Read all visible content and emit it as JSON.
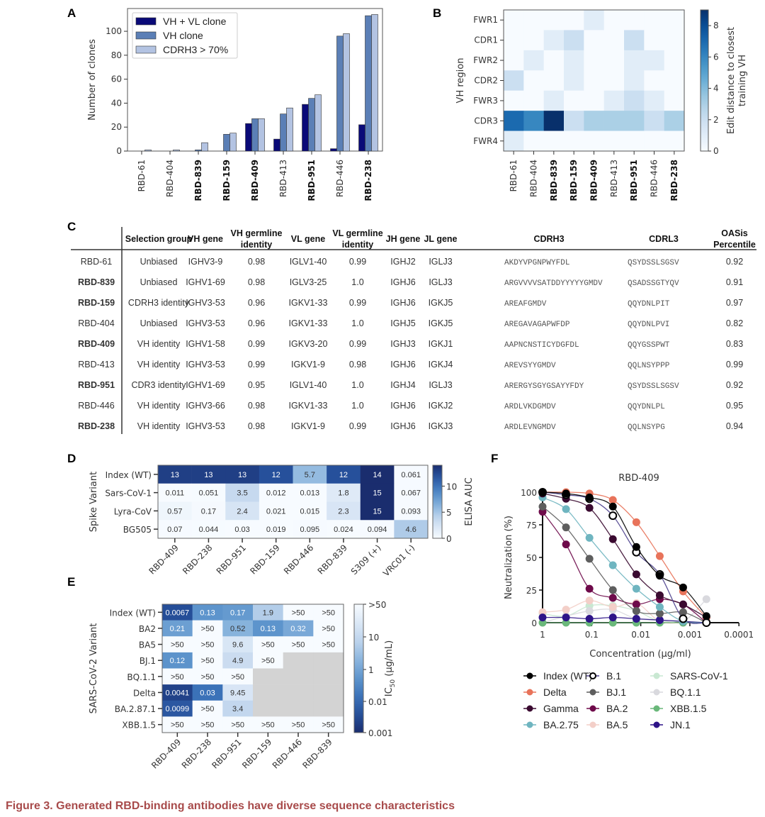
{
  "figure": {
    "caption": "Figure 3.  Generated RBD-binding antibodies have diverse sequence characteristics",
    "panel_letters": [
      "A",
      "B",
      "C",
      "D",
      "E",
      "F"
    ]
  },
  "chart_data": [
    {
      "panel": "A",
      "type": "bar",
      "title": "",
      "xlabel": "",
      "ylabel": "Number of clones",
      "ylim": [
        0,
        119
      ],
      "yticks": [
        0,
        20,
        40,
        60,
        80,
        100
      ],
      "categories": [
        "RBD-61",
        "RBD-404",
        "RBD-839",
        "RBD-159",
        "RBD-409",
        "RBD-413",
        "RBD-951",
        "RBD-446",
        "RBD-238"
      ],
      "bold_categories": [
        "RBD-839",
        "RBD-159",
        "RBD-409",
        "RBD-951",
        "RBD-238"
      ],
      "legend_position": "top-left",
      "series": [
        {
          "name": "VH + VL clone",
          "color": "#0a0a78",
          "values": [
            0,
            0,
            0,
            0,
            23,
            10,
            39,
            2,
            22
          ]
        },
        {
          "name": "VH clone",
          "color": "#5b7fb6",
          "values": [
            0,
            0,
            1,
            14,
            27,
            31,
            44,
            96,
            113
          ]
        },
        {
          "name": "CDRH3 > 70%",
          "color": "#b3c3e2",
          "values": [
            1,
            1,
            7,
            15,
            27,
            36,
            47,
            98,
            114
          ]
        }
      ]
    },
    {
      "panel": "B",
      "type": "heatmap",
      "ylabel": "VH region",
      "colorbar_label": "Edit distance to closest training VH",
      "colorbar_range": [
        0,
        9
      ],
      "colorbar_ticks": [
        0,
        2,
        4,
        6,
        8
      ],
      "x": [
        "RBD-61",
        "RBD-404",
        "RBD-839",
        "RBD-159",
        "RBD-409",
        "RBD-413",
        "RBD-951",
        "RBD-446",
        "RBD-238"
      ],
      "bold_x": [
        "RBD-839",
        "RBD-159",
        "RBD-409",
        "RBD-951",
        "RBD-238"
      ],
      "y": [
        "FWR1",
        "CDR1",
        "FWR2",
        "CDR2",
        "FWR3",
        "CDR3",
        "FWR4"
      ],
      "values": [
        [
          0,
          0,
          0,
          0,
          1,
          0,
          0,
          0,
          0
        ],
        [
          0,
          0,
          1,
          2,
          0,
          0,
          2,
          0,
          0
        ],
        [
          0,
          1,
          0,
          1,
          0,
          0,
          1,
          1,
          0
        ],
        [
          2,
          0,
          0,
          1,
          0,
          0,
          1,
          0,
          0
        ],
        [
          0,
          0,
          1,
          0,
          0,
          1,
          2,
          1,
          0
        ],
        [
          7,
          6,
          9,
          2,
          3,
          3,
          3,
          2,
          3
        ],
        [
          1,
          0,
          0,
          0,
          0,
          0,
          0,
          0,
          0
        ]
      ]
    },
    {
      "panel": "D",
      "type": "heatmap",
      "ylabel": "Spike Variant",
      "colorbar_label": "ELISA AUC",
      "colorbar_range": [
        0,
        14
      ],
      "colorbar_ticks": [
        0,
        5,
        10
      ],
      "x": [
        "RBD-409",
        "RBD-238",
        "RBD-951",
        "RBD-159",
        "RBD-446",
        "RBD-839",
        "S309 (+)",
        "VRC01 (-)"
      ],
      "y": [
        "Index (WT)",
        "Sars-CoV-1",
        "Lyra-CoV",
        "BG505"
      ],
      "labels": [
        [
          "13",
          "13",
          "13",
          "12",
          "5.7",
          "12",
          "14",
          "0.061"
        ],
        [
          "0.011",
          "0.051",
          "3.5",
          "0.012",
          "0.013",
          "1.8",
          "15",
          "0.067"
        ],
        [
          "0.57",
          "0.17",
          "2.4",
          "0.021",
          "0.015",
          "2.3",
          "15",
          "0.093"
        ],
        [
          "0.07",
          "0.044",
          "0.03",
          "0.019",
          "0.095",
          "0.024",
          "0.094",
          "4.6"
        ]
      ],
      "values": [
        [
          13,
          13,
          13,
          12,
          5.7,
          12,
          14,
          0.061
        ],
        [
          0.011,
          0.051,
          3.5,
          0.012,
          0.013,
          1.8,
          15,
          0.067
        ],
        [
          0.57,
          0.17,
          2.4,
          0.021,
          0.015,
          2.3,
          15,
          0.093
        ],
        [
          0.07,
          0.044,
          0.03,
          0.019,
          0.095,
          0.024,
          0.094,
          4.6
        ]
      ]
    },
    {
      "panel": "E",
      "type": "heatmap",
      "ylabel": "SARS-CoV-2 Variant",
      "colorbar_label": "IC50 (µg/mL)",
      "colorbar_scale": "log",
      "colorbar_ticks": [
        ">50",
        "10",
        "1",
        "0.01",
        "0.001"
      ],
      "x": [
        "RBD-409",
        "RBD-238",
        "RBD-951",
        "RBD-159",
        "RBD-446",
        "RBD-839"
      ],
      "y": [
        "Index (WT)",
        "BA2",
        "BA5",
        "BJ.1",
        "BQ.1.1",
        "Delta",
        "BA.2.87.1",
        "XBB.1.5"
      ],
      "labels": [
        [
          "0.0067",
          "0.13",
          "0.17",
          "1.9",
          ">50",
          ">50"
        ],
        [
          "0.21",
          ">50",
          "0.52",
          "0.13",
          "0.32",
          ">50"
        ],
        [
          ">50",
          ">50",
          "9.6",
          ">50",
          ">50",
          ">50"
        ],
        [
          "0.12",
          ">50",
          "4.9",
          ">50",
          null,
          null
        ],
        [
          ">50",
          ">50",
          ">50",
          null,
          null,
          null
        ],
        [
          "0.0041",
          "0.03",
          "9.45",
          null,
          null,
          null
        ],
        [
          "0.0099",
          ">50",
          "3.4",
          null,
          null,
          null
        ],
        [
          ">50",
          ">50",
          ">50",
          ">50",
          ">50",
          ">50"
        ]
      ],
      "missing_color": "#d3d3d3"
    },
    {
      "panel": "F",
      "type": "line",
      "title": "RBD-409",
      "xlabel": "Concentration (µg/ml)",
      "ylabel": "Neutralization (%)",
      "xscale": "log-reversed",
      "xlim": [
        1,
        0.0001
      ],
      "xticks": [
        "1",
        "0.1",
        "0.01",
        "0.001",
        "0.0001"
      ],
      "ylim": [
        0,
        100
      ],
      "yticks": [
        0,
        25,
        50,
        75,
        100
      ],
      "x": [
        1,
        0.333,
        0.111,
        0.037,
        0.0123,
        0.0041,
        0.00137,
        0.00046
      ],
      "series": [
        {
          "name": "Index (WT)",
          "color": "#000000",
          "open": false,
          "values": [
            100,
            99,
            96,
            89,
            58,
            36,
            27,
            5
          ]
        },
        {
          "name": "B.1",
          "color": "#000000",
          "line_color": "#4b3f8c",
          "open": true,
          "values": [
            100,
            98,
            95,
            82,
            54,
            37,
            3,
            0
          ]
        },
        {
          "name": "SARS-CoV-1",
          "color": "#c9e8d2",
          "open": false,
          "values": [
            7,
            5,
            13,
            13,
            9,
            1,
            1,
            0
          ]
        },
        {
          "name": "Delta",
          "color": "#e8735a",
          "open": false,
          "values": [
            100,
            100,
            99,
            94,
            77,
            51,
            24,
            4
          ]
        },
        {
          "name": "BJ.1",
          "color": "#5e5e5e",
          "open": false,
          "values": [
            89,
            73,
            49,
            25,
            9,
            7,
            8,
            0
          ]
        },
        {
          "name": "BQ.1.1",
          "color": "#d9d9de",
          "open": false,
          "values": [
            0,
            5,
            9,
            10,
            3,
            2,
            1,
            18
          ]
        },
        {
          "name": "Gamma",
          "color": "#3a0a30",
          "open": false,
          "values": [
            99,
            95,
            88,
            64,
            37,
            21,
            14,
            4
          ]
        },
        {
          "name": "BA.2",
          "color": "#6e0a4a",
          "open": false,
          "values": [
            85,
            60,
            26,
            19,
            14,
            18,
            14,
            0
          ]
        },
        {
          "name": "XBB.1.5",
          "color": "#6ab87a",
          "open": false,
          "values": [
            0,
            0,
            0,
            0,
            0,
            0,
            0,
            0
          ]
        },
        {
          "name": "BA.2.75",
          "color": "#6fb5c0",
          "open": false,
          "values": [
            96,
            87,
            65,
            44,
            26,
            12,
            1,
            0
          ]
        },
        {
          "name": "BA.5",
          "color": "#f3cfc8",
          "open": false,
          "values": [
            8,
            10,
            17,
            12,
            15,
            1,
            0,
            0
          ]
        },
        {
          "name": "JN.1",
          "color": "#2e1488",
          "open": false,
          "values": [
            4,
            4,
            3,
            4,
            3,
            2,
            1,
            0
          ]
        }
      ]
    }
  ],
  "table_c": {
    "headers": [
      "",
      "Selection group",
      "VH gene",
      "VH germline identity",
      "VL gene",
      "VL germline identity",
      "JH gene",
      "JL gene",
      "CDRH3",
      "CDRL3",
      "OASis Percentile"
    ],
    "rows": [
      {
        "name": "RBD-61",
        "bold": false,
        "cells": [
          "Unbiased",
          "IGHV3-9",
          "0.98",
          "IGLV1-40",
          "0.99",
          "IGHJ2",
          "IGLJ3",
          "AKDYVPGNPWYFDL",
          "QSYDSSLSGSV",
          "0.92"
        ]
      },
      {
        "name": "RBD-839",
        "bold": true,
        "cells": [
          "Unbiased",
          "IGHV1-69",
          "0.98",
          "IGLV3-25",
          "1.0",
          "IGHJ6",
          "IGLJ3",
          "ARGVVVVSATDDYYYYYGMDV",
          "QSADSSGTYQV",
          "0.91"
        ]
      },
      {
        "name": "RBD-159",
        "bold": true,
        "cells": [
          "CDRH3 identity",
          "IGHV3-53",
          "0.96",
          "IGKV1-33",
          "0.99",
          "IGHJ6",
          "IGKJ5",
          "AREAFGMDV",
          "QQYDNLPIT",
          "0.97"
        ]
      },
      {
        "name": "RBD-404",
        "bold": false,
        "cells": [
          "Unbiased",
          "IGHV3-53",
          "0.96",
          "IGKV1-33",
          "1.0",
          "IGHJ5",
          "IGKJ5",
          "AREGAVAGAPWFDP",
          "QQYDNLPVI",
          "0.82"
        ]
      },
      {
        "name": "RBD-409",
        "bold": true,
        "cells": [
          "VH identity",
          "IGHV1-58",
          "0.99",
          "IGKV3-20",
          "0.99",
          "IGHJ3",
          "IGKJ1",
          "AAPNCNSTICYDGFDL",
          "QQYGSSPWT",
          "0.83"
        ]
      },
      {
        "name": "RBD-413",
        "bold": false,
        "cells": [
          "VH identity",
          "IGHV3-53",
          "0.99",
          "IGKV1-9",
          "0.98",
          "IGHJ6",
          "IGKJ4",
          "AREVSYYGMDV",
          "QQLNSYPPP",
          "0.99"
        ]
      },
      {
        "name": "RBD-951",
        "bold": true,
        "cells": [
          "CDR3 identity",
          "IGHV1-69",
          "0.95",
          "IGLV1-40",
          "1.0",
          "IGHJ4",
          "IGLJ3",
          "ARERGYSGYGSAYYFDY",
          "QSYDSSLSGSV",
          "0.92"
        ]
      },
      {
        "name": "RBD-446",
        "bold": false,
        "cells": [
          "VH identity",
          "IGHV3-66",
          "0.98",
          "IGKV1-33",
          "1.0",
          "IGHJ6",
          "IGKJ2",
          "ARDLVKDGMDV",
          "QQYDNLPL",
          "0.95"
        ]
      },
      {
        "name": "RBD-238",
        "bold": true,
        "cells": [
          "VH identity",
          "IGHV3-53",
          "0.98",
          "IGKV1-9",
          "0.99",
          "IGHJ6",
          "IGKJ3",
          "ARDLEVNGMDV",
          "QQLNSYPG",
          "0.94"
        ]
      }
    ]
  }
}
